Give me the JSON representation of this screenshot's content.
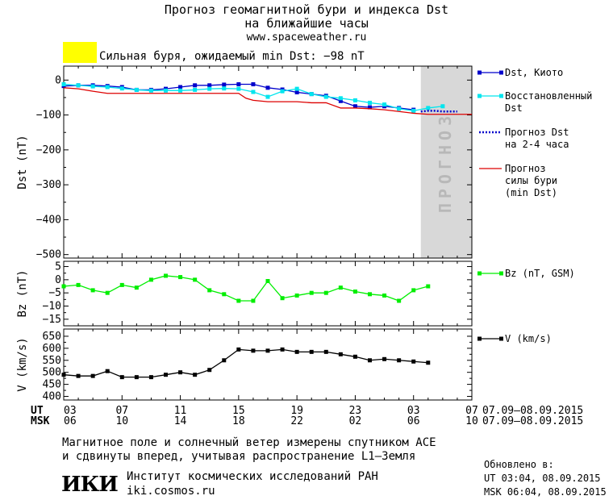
{
  "header": {
    "title_line1": "Прогноз геомагнитной бури и индекса Dst",
    "title_line2": "на ближайшие часы",
    "site": "www.spaceweather.ru",
    "storm_text": "Сильная буря, ожидаемый min Dst: −98 nT",
    "storm_color": "#ffff00"
  },
  "legend": {
    "dst_kyoto": "Dst, Киото",
    "restored_1": "Восстановленный",
    "restored_2": "Dst",
    "forecast_1": "Прогноз Dst",
    "forecast_2": "на 2-4 часа",
    "storm_1": "Прогноз",
    "storm_2": "силы бури",
    "storm_3": "(min Dst)",
    "bz": "Bz (nT, GSM)",
    "v": "V (km/s)"
  },
  "colors": {
    "dst_kyoto": "#0000cc",
    "restored": "#00e5ee",
    "forecast": "#0000cc",
    "storm": "#dd0000",
    "bz": "#00ee00",
    "v": "#000000",
    "forecast_band": "#d8d8d8"
  },
  "axis_rows": {
    "ut_label": "UT",
    "msk_label": "MSK",
    "ut_range": "07.09–08.09.2015",
    "msk_range": "07.09–08.09.2015"
  },
  "footer": {
    "line1": "Магнитное поле и солнечный ветер измерены спутником ACE",
    "line2": "и сдвинуты вперед, учитывая распространение L1–Земля",
    "logo": "ИКИ",
    "institute": "Институт космических исследований РАН",
    "institute_site": "iki.cosmos.ru",
    "updated_label": "Обновлено в:",
    "updated_ut": "UT  03:04, 08.09.2015",
    "updated_msk": "MSK 06:04, 08.09.2015"
  },
  "chart_data": [
    {
      "type": "line",
      "ylabel": "Dst (nT)",
      "ylim": [
        -510,
        40
      ],
      "yticks": [
        0,
        -100,
        -200,
        -300,
        -400,
        -500
      ],
      "xlim": [
        3,
        31
      ],
      "forecast_band_label": "ПРОГНОЗ",
      "forecast_band_x": [
        27.5,
        31
      ],
      "series": [
        {
          "name": "Dst, Киото",
          "kind": "square-line",
          "x": [
            3,
            4,
            5,
            6,
            7,
            8,
            9,
            10,
            11,
            12,
            13,
            14,
            15,
            16,
            17,
            18,
            19,
            20,
            21,
            22,
            23,
            24,
            25,
            26,
            27
          ],
          "y": [
            -17,
            -15,
            -15,
            -17,
            -20,
            -28,
            -28,
            -25,
            -20,
            -15,
            -15,
            -13,
            -12,
            -12,
            -22,
            -27,
            -35,
            -40,
            -45,
            -60,
            -75,
            -78,
            -75,
            -80,
            -85
          ]
        },
        {
          "name": "Восстановленный Dst",
          "kind": "square-line",
          "x": [
            3,
            4,
            5,
            6,
            7,
            8,
            9,
            10,
            11,
            12,
            13,
            14,
            15,
            16,
            17,
            18,
            19,
            20,
            21,
            22,
            23,
            24,
            25,
            26,
            27,
            28,
            29
          ],
          "y": [
            -12,
            -15,
            -18,
            -20,
            -24,
            -28,
            -30,
            -30,
            -30,
            -28,
            -25,
            -24,
            -25,
            -34,
            -48,
            -32,
            -25,
            -40,
            -48,
            -52,
            -58,
            -65,
            -70,
            -82,
            -88,
            -80,
            -75
          ]
        },
        {
          "name": "Прогноз Dst на 2-4 часа",
          "kind": "dotted",
          "x": [
            27.5,
            28,
            28.5,
            29,
            29.5,
            30
          ],
          "y": [
            -90,
            -88,
            -88,
            -90,
            -90,
            -90
          ]
        },
        {
          "name": "Прогноз силы бури (min Dst)",
          "kind": "line",
          "x": [
            3,
            4,
            5,
            6,
            7,
            8,
            9,
            10,
            11,
            12,
            13,
            14,
            15,
            15.5,
            16,
            17,
            18,
            19,
            20,
            21,
            22,
            23,
            24,
            25,
            26,
            27,
            28,
            31
          ],
          "y": [
            -22,
            -25,
            -32,
            -38,
            -38,
            -38,
            -38,
            -38,
            -38,
            -38,
            -38,
            -38,
            -38,
            -52,
            -58,
            -62,
            -62,
            -62,
            -65,
            -65,
            -80,
            -80,
            -82,
            -85,
            -90,
            -95,
            -98,
            -98
          ]
        }
      ]
    },
    {
      "type": "line",
      "ylabel": "Bz (nT)",
      "ylim": [
        -17.5,
        7
      ],
      "yticks": [
        5,
        0,
        -5,
        -10,
        -15
      ],
      "xlim": [
        3,
        31
      ],
      "series": [
        {
          "name": "Bz (nT, GSM)",
          "x": [
            3,
            4,
            5,
            6,
            7,
            8,
            9,
            10,
            11,
            12,
            13,
            14,
            15,
            16,
            17,
            18,
            19,
            20,
            21,
            22,
            23,
            24,
            25,
            26,
            27,
            28
          ],
          "y": [
            -2.5,
            -2,
            -4,
            -5,
            -2,
            -3,
            0,
            1.5,
            1,
            0,
            -4,
            -5.5,
            -8,
            -8,
            -0.5,
            -7,
            -6,
            -5,
            -5,
            -3,
            -4.5,
            -5.5,
            -6,
            -8,
            -4,
            -2.5
          ]
        }
      ]
    },
    {
      "type": "line",
      "ylabel": "V (km/s)",
      "ylim": [
        385,
        680
      ],
      "yticks": [
        650,
        600,
        550,
        500,
        450,
        400
      ],
      "xlim": [
        3,
        31
      ],
      "series": [
        {
          "name": "V (km/s)",
          "x": [
            3,
            4,
            5,
            6,
            7,
            8,
            9,
            10,
            11,
            12,
            13,
            14,
            15,
            16,
            17,
            18,
            19,
            20,
            21,
            22,
            23,
            24,
            25,
            26,
            27,
            28
          ],
          "y": [
            490,
            485,
            485,
            505,
            480,
            480,
            480,
            490,
            500,
            490,
            510,
            550,
            595,
            590,
            590,
            595,
            585,
            585,
            585,
            575,
            565,
            550,
            555,
            550,
            545,
            540
          ]
        }
      ]
    }
  ],
  "time_axis": {
    "ut_ticks": [
      "03",
      "07",
      "11",
      "15",
      "19",
      "23",
      "03",
      "07"
    ],
    "msk_ticks": [
      "06",
      "10",
      "14",
      "18",
      "22",
      "02",
      "06",
      "10"
    ],
    "tick_hours": [
      3,
      7,
      11,
      15,
      19,
      23,
      27,
      31
    ]
  }
}
